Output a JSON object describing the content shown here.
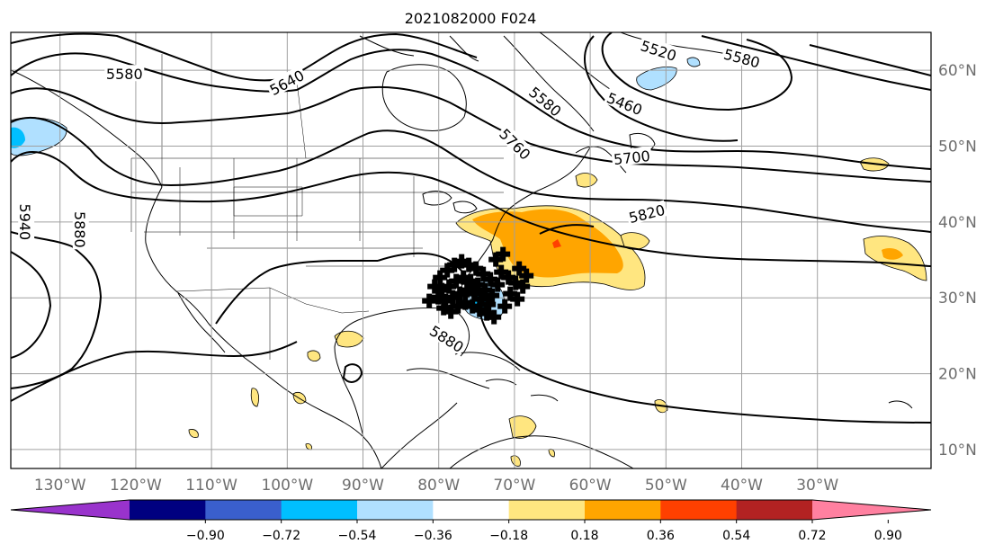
{
  "title": "2021082000 F024",
  "map": {
    "lon_range": [
      -136.5,
      -15
    ],
    "lat_range": [
      7.5,
      65
    ],
    "lat_ticks": [
      {
        "value": 60,
        "label": "60°N"
      },
      {
        "value": 50,
        "label": "50°N"
      },
      {
        "value": 40,
        "label": "40°N"
      },
      {
        "value": 30,
        "label": "30°N"
      },
      {
        "value": 20,
        "label": "20°N"
      },
      {
        "value": 10,
        "label": "10°N"
      }
    ],
    "lon_ticks": [
      {
        "value": -130,
        "label": "130°W"
      },
      {
        "value": -120,
        "label": "120°W"
      },
      {
        "value": -110,
        "label": "110°W"
      },
      {
        "value": -100,
        "label": "100°W"
      },
      {
        "value": -90,
        "label": "90°W"
      },
      {
        "value": -80,
        "label": "80°W"
      },
      {
        "value": -70,
        "label": "70°W"
      },
      {
        "value": -60,
        "label": "60°W"
      },
      {
        "value": -50,
        "label": "50°W"
      },
      {
        "value": -40,
        "label": "40°W"
      },
      {
        "value": -30,
        "label": "30°W"
      }
    ],
    "contour_labels": [
      {
        "text": "5520",
        "lon": -51,
        "lat": 62.5,
        "rotate": 18
      },
      {
        "text": "5580",
        "lon": -40,
        "lat": 61.5,
        "rotate": 15
      },
      {
        "text": "5580",
        "lon": -121.5,
        "lat": 59.4,
        "rotate": 0
      },
      {
        "text": "5640",
        "lon": -100,
        "lat": 58.3,
        "rotate": -28
      },
      {
        "text": "5460",
        "lon": -55.5,
        "lat": 55.5,
        "rotate": 22
      },
      {
        "text": "5580",
        "lon": -66,
        "lat": 55.8,
        "rotate": 40
      },
      {
        "text": "5760",
        "lon": -70,
        "lat": 50.2,
        "rotate": 45
      },
      {
        "text": "5700",
        "lon": -54.5,
        "lat": 48.4,
        "rotate": -6
      },
      {
        "text": "5820",
        "lon": -52.5,
        "lat": 41,
        "rotate": -14
      },
      {
        "text": "5940",
        "lon": -134.7,
        "lat": 40,
        "rotate": 90
      },
      {
        "text": "5880",
        "lon": -127.5,
        "lat": 39,
        "rotate": 90
      },
      {
        "text": "5880",
        "lon": -79,
        "lat": 24.5,
        "rotate": 32
      }
    ],
    "hurricane_marker": {
      "lon": -76.5,
      "lat": 31.5
    }
  },
  "colorbar": {
    "colors": [
      "#9933cc",
      "#000080",
      "#3a5fcd",
      "#00bfff",
      "#b0e0ff",
      "#ffffff",
      "#ffe680",
      "#ffa500",
      "#ff4000",
      "#b22222",
      "#ff80a0"
    ],
    "ticks": [
      "−0.90",
      "−0.72",
      "−0.54",
      "−0.36",
      "−0.18",
      "0.18",
      "0.36",
      "0.54",
      "0.72",
      "0.90"
    ]
  },
  "colors": {
    "contour": "#000000",
    "grid": "#a0a0a0",
    "pos_light": "#ffe680",
    "pos_mid": "#ffa500",
    "pos_strong": "#ff4000",
    "neg_light": "#b0e0ff",
    "neg_mid": "#00bfff",
    "neg_strong": "#3a5fcd"
  }
}
